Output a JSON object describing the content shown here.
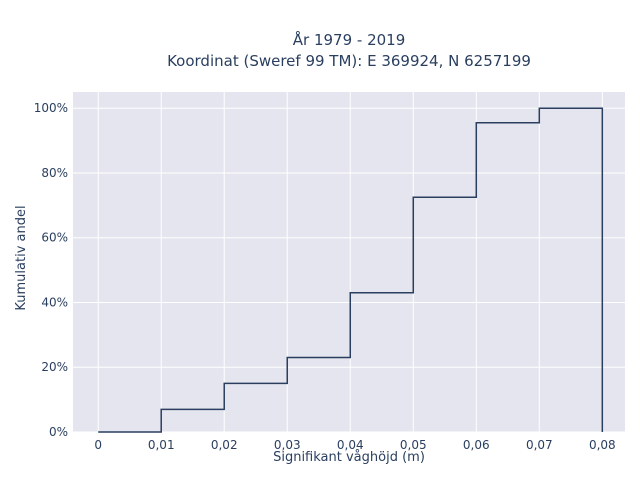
{
  "chart_data": {
    "type": "line",
    "step": true,
    "title_lines": [
      "År 1979 - 2019",
      "Koordinat (Sweref 99 TM): E 369924, N 6257199"
    ],
    "xlabel": "Signifikant våghöjd (m)",
    "ylabel": "Kumulativ andel",
    "xlim": [
      -0.004,
      0.0836
    ],
    "ylim": [
      0,
      1.05
    ],
    "x_ticks": [
      0,
      0.01,
      0.02,
      0.03,
      0.04,
      0.05,
      0.06,
      0.07,
      0.08
    ],
    "x_tick_labels": [
      "0",
      "0,01",
      "0,02",
      "0,03",
      "0,04",
      "0,05",
      "0,06",
      "0,07",
      "0,08"
    ],
    "y_ticks": [
      0,
      0.2,
      0.4,
      0.6,
      0.8,
      1.0
    ],
    "y_tick_labels": [
      "0%",
      "20%",
      "40%",
      "60%",
      "80%",
      "100%"
    ],
    "x": [
      0,
      0.01,
      0.02,
      0.03,
      0.04,
      0.05,
      0.06,
      0.07,
      0.08
    ],
    "y": [
      0,
      0.07,
      0.15,
      0.23,
      0.43,
      0.725,
      0.955,
      1.0,
      1.0
    ],
    "drop_to_zero_at_end": true,
    "grid": true,
    "colors": {
      "plot_bg": "#e5e5ef",
      "grid": "#ffffff",
      "line": "#2a3f5f"
    }
  }
}
